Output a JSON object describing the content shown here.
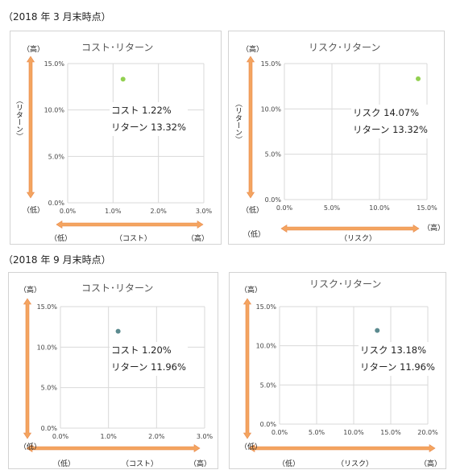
{
  "sections": [
    {
      "title": "（2018 年 3 月末時点）"
    },
    {
      "title": "（2018 年 9 月末時点）"
    }
  ],
  "colors": {
    "arrow": "#f4a460",
    "arrow_border": "#e8894a",
    "point_march": "#92d050",
    "point_sept": "#5b8a8f",
    "grid": "#d9d9d9"
  },
  "chart_data": [
    {
      "id": "mar-cost",
      "type": "scatter",
      "title": "コスト･リターン",
      "x_ticks": [
        "0.0%",
        "1.0%",
        "2.0%",
        "3.0%"
      ],
      "xlim": [
        0,
        3
      ],
      "y_ticks": [
        "0.0%",
        "5.0%",
        "10.0%",
        "15.0%"
      ],
      "ylim": [
        0,
        15
      ],
      "points": [
        {
          "x": 1.22,
          "y": 13.32
        }
      ],
      "annotation": [
        "コスト 1.22%",
        "リターン 13.32%"
      ],
      "y_axis_label": "（リターン）",
      "y_high": "（高）",
      "y_low": "（低）",
      "x_axis_label": "（コスト）",
      "x_low": "（低）",
      "x_high": "（高）",
      "point_color": "#92d050"
    },
    {
      "id": "mar-risk",
      "type": "scatter",
      "title": "リスク･リターン",
      "x_ticks": [
        "0.0%",
        "5.0%",
        "10.0%",
        "15.0%"
      ],
      "xlim": [
        0,
        15
      ],
      "y_ticks": [
        "0.0%",
        "5.0%",
        "10.0%",
        "15.0%"
      ],
      "ylim": [
        0,
        15
      ],
      "points": [
        {
          "x": 14.07,
          "y": 13.32
        }
      ],
      "annotation": [
        "リスク 14.07%",
        "リターン 13.32%"
      ],
      "y_axis_label": "（リターン）",
      "y_high": "（高）",
      "y_low": "（低）",
      "x_axis_label": "（リスク）",
      "x_low": "（低）",
      "x_high": "（高）",
      "point_color": "#92d050"
    },
    {
      "id": "sep-cost",
      "type": "scatter",
      "title": "コスト･リターン",
      "x_ticks": [
        "0.0%",
        "1.0%",
        "2.0%",
        "3.0%"
      ],
      "xlim": [
        0,
        3
      ],
      "y_ticks": [
        "0.0%",
        "5.0%",
        "10.0%",
        "15.0%"
      ],
      "ylim": [
        0,
        15
      ],
      "points": [
        {
          "x": 1.2,
          "y": 11.96
        }
      ],
      "annotation": [
        "コスト 1.20%",
        "リターン 11.96%"
      ],
      "y_axis_label": "",
      "y_high": "（高）",
      "y_low": "（低）",
      "x_axis_label": "（コスト）",
      "x_low": "（低）",
      "x_high": "（高）",
      "point_color": "#5b8a8f"
    },
    {
      "id": "sep-risk",
      "type": "scatter",
      "title": "リスク･リターン",
      "x_ticks": [
        "0.0%",
        "5.0%",
        "10.0%",
        "15.0%",
        "20.0%"
      ],
      "xlim": [
        0,
        20
      ],
      "y_ticks": [
        "0.0%",
        "5.0%",
        "10.0%",
        "15.0%"
      ],
      "ylim": [
        0,
        15
      ],
      "points": [
        {
          "x": 13.18,
          "y": 11.96
        }
      ],
      "annotation": [
        "リスク 13.18%",
        "リターン 11.96%"
      ],
      "y_axis_label": "",
      "y_high": "（高）",
      "y_low": "（低）",
      "x_axis_label": "（リスク）",
      "x_low": "（低）",
      "x_high": "（高）",
      "point_color": "#5b8a8f"
    }
  ]
}
